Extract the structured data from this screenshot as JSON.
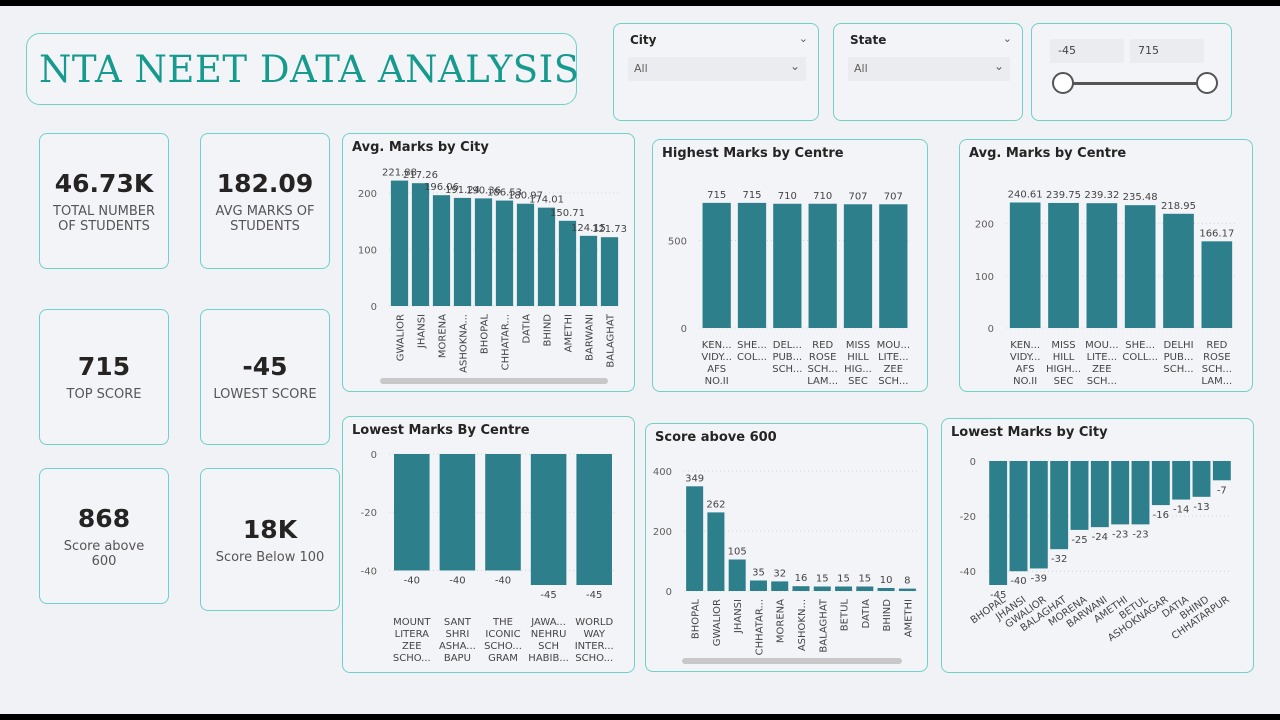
{
  "header": {
    "title": "NTA NEET DATA ANALYSIS"
  },
  "kpis": [
    {
      "value": "46.73K",
      "label": "TOTAL NUMBER OF STUDENTS"
    },
    {
      "value": "182.09",
      "label": "AVG MARKS OF STUDENTS"
    },
    {
      "value": "715",
      "label": "TOP SCORE"
    },
    {
      "value": "-45",
      "label": "LOWEST SCORE"
    },
    {
      "value": "868",
      "label": "Score above 600"
    },
    {
      "value": "18K",
      "label": "Score Below 100"
    }
  ],
  "slicers": {
    "city": {
      "label": "City",
      "value": "All"
    },
    "state": {
      "label": "State",
      "value": "All"
    },
    "range": {
      "min": "-45",
      "max": "715"
    }
  },
  "colors": {
    "bar": "#2c7f8b",
    "accent": "#179a8e",
    "border": "#6fd1c7"
  },
  "chart_data": [
    {
      "id": "avg_city",
      "type": "bar",
      "title": "Avg. Marks by City",
      "categories": [
        "GWALIOR",
        "JHANSI",
        "MORENA",
        "ASHOKNA...",
        "BHOPAL",
        "CHHATAR...",
        "DATIA",
        "BHIND",
        "AMETHI",
        "BARWANI",
        "BALAGHAT"
      ],
      "values": [
        221.88,
        217.26,
        196.06,
        191.24,
        190.36,
        186.53,
        180.97,
        174.01,
        150.71,
        124.15,
        121.73
      ],
      "yticks": [
        0,
        100,
        200
      ],
      "ylim": [
        0,
        230
      ],
      "grid": true,
      "scrollbar": true
    },
    {
      "id": "high_centre",
      "type": "bar",
      "title": "Highest Marks by Centre",
      "categories": [
        [
          "KEN...",
          "VIDY...",
          "AFS",
          "NO.II"
        ],
        [
          "SHE...",
          "COL..."
        ],
        [
          "DEL...",
          "PUB...",
          "SCH..."
        ],
        [
          "RED",
          "ROSE",
          "SCH...",
          "LAM..."
        ],
        [
          "MISS",
          "HILL",
          "HIG...",
          "SEC"
        ],
        [
          "MOU...",
          "LITE...",
          "ZEE",
          "SCH..."
        ]
      ],
      "values": [
        715,
        715,
        710,
        710,
        707,
        707
      ],
      "yticks": [
        0,
        500
      ],
      "ylim": [
        0,
        760
      ],
      "grid": true
    },
    {
      "id": "avg_centre",
      "type": "bar",
      "title": "Avg. Marks by Centre",
      "categories": [
        [
          "KEN...",
          "VIDY...",
          "AFS",
          "NO.II"
        ],
        [
          "MISS",
          "HILL",
          "HIGH...",
          "SEC"
        ],
        [
          "MOU...",
          "LITE...",
          "ZEE",
          "SCH..."
        ],
        [
          "SHE...",
          "COLL..."
        ],
        [
          "DELHI",
          "PUB...",
          "SCH..."
        ],
        [
          "RED",
          "ROSE",
          "SCH...",
          "LAM..."
        ]
      ],
      "values": [
        240.61,
        239.75,
        239.32,
        235.48,
        218.95,
        166.17
      ],
      "yticks": [
        0,
        100,
        200
      ],
      "ylim": [
        0,
        255
      ],
      "grid": true
    },
    {
      "id": "low_centre",
      "type": "bar",
      "title": "Lowest Marks By Centre",
      "categories": [
        [
          "MOUNT",
          "LITERA",
          "ZEE",
          "SCHO..."
        ],
        [
          "SANT",
          "SHRI",
          "ASHA...",
          "BAPU"
        ],
        [
          "THE",
          "ICONIC",
          "SCHO...",
          "GRAM"
        ],
        [
          "JAWA...",
          "NEHRU",
          "SCH",
          "HABIB..."
        ],
        [
          "WORLD",
          "WAY",
          "INTER...",
          "SCHO..."
        ]
      ],
      "values": [
        -40,
        -40,
        -40,
        -45,
        -45
      ],
      "yticks": [
        0,
        -20,
        -40
      ],
      "ylim": [
        -45,
        0
      ],
      "grid": true
    },
    {
      "id": "above600",
      "type": "bar",
      "title": "Score above 600",
      "categories": [
        "BHOPAL",
        "GWALIOR",
        "JHANSI",
        "CHHATAR...",
        "MORENA",
        "ASHOKN...",
        "BALAGHAT",
        "BETUL",
        "DATIA",
        "BHIND",
        "AMETHI"
      ],
      "values": [
        349,
        262,
        105,
        35,
        32,
        16,
        15,
        15,
        15,
        10,
        8
      ],
      "yticks": [
        0,
        200,
        400
      ],
      "ylim": [
        0,
        400
      ],
      "grid": true,
      "scrollbar": true
    },
    {
      "id": "low_city",
      "type": "bar",
      "title": "Lowest Marks by City",
      "categories": [
        "BHOPAL",
        "JHANSI",
        "GWALIOR",
        "BALAGHAT",
        "MORENA",
        "BARWANI",
        "AMETHI",
        "BETUL",
        "ASHOKNAGAR",
        "DATIA",
        "BHIND",
        "CHHATARPUR"
      ],
      "values": [
        -45,
        -40,
        -39,
        -32,
        -25,
        -24,
        -23,
        -23,
        -16,
        -14,
        -13,
        -7
      ],
      "yticks": [
        0,
        -20,
        -40
      ],
      "ylim": [
        -45,
        0
      ],
      "grid": true
    }
  ]
}
